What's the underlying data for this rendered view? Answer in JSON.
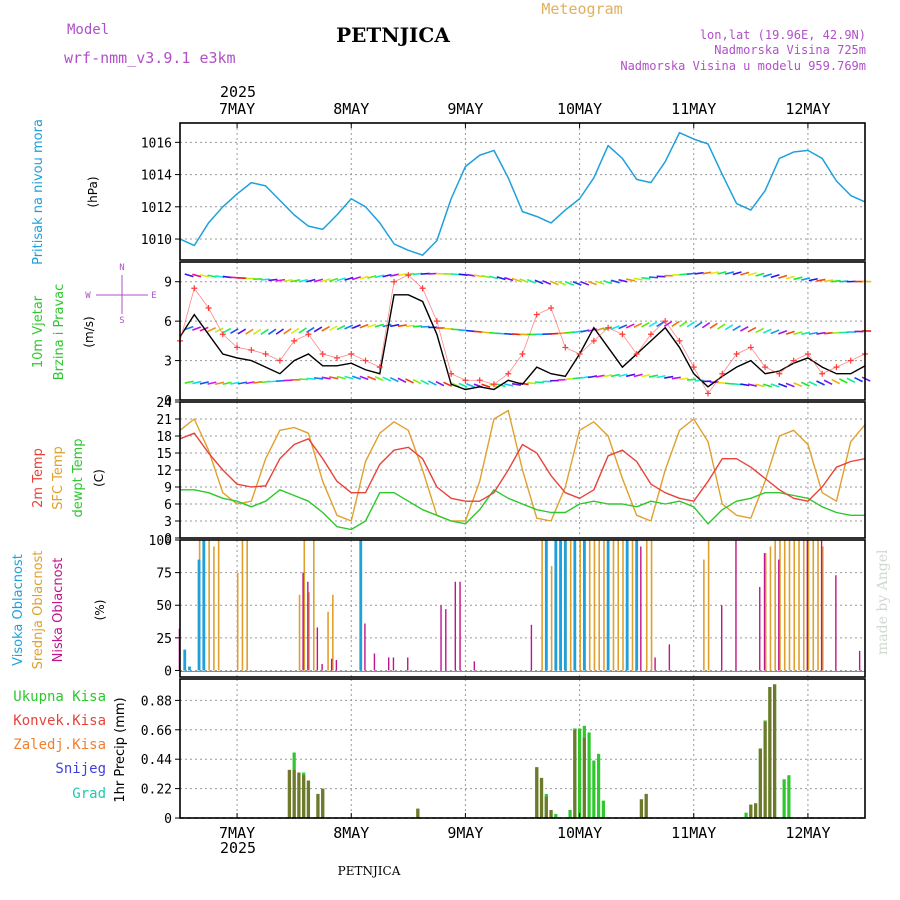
{
  "header": {
    "model_label": "Model",
    "model_name": "wrf-nmm_v3.9.1 e3km",
    "station": "PETNJICA",
    "chart_type": "Meteogram",
    "coords": "lon,lat (19.96E, 42.9N)",
    "elevation": "Nadmorska Visina 725m",
    "model_elevation": "Nadmorska Visina u modelu 959.769m",
    "watermark": "made by Angel",
    "footer_station": "PETNJICA"
  },
  "colors": {
    "pressure": "#1ea0dc",
    "wind_speed": "#000000",
    "gust": "#ff3b3b",
    "t2m": "#e8433b",
    "tsfc": "#e0a02e",
    "dewpt": "#2ec82e",
    "cloud_high": "#1ea0dc",
    "cloud_mid": "#e0a02e",
    "cloud_low": "#c0148c",
    "rain_total": "#2ec82e",
    "rain_conv": "#e8433b",
    "snow": "#4040e0",
    "grid": "#999999",
    "title": "#b050c8",
    "meteogram": "#e0b060"
  },
  "chart_data": {
    "type": "line",
    "years": {
      "top": "2025",
      "bottom": "2025"
    },
    "days": [
      "7MAY",
      "8MAY",
      "9MAY",
      "10MAY",
      "11MAY",
      "12MAY"
    ],
    "x_start_hour": -12,
    "x_end_hour": 132,
    "pressure": {
      "ylabel": "Pritisak na nivou mora",
      "unit": "(hPa)",
      "ylim": [
        1008.7,
        1017.2
      ],
      "ticks": [
        1010,
        1012,
        1014,
        1016
      ],
      "tick_labels": [
        "1010",
        "1012",
        "1014",
        "1016"
      ],
      "hours": [
        -12,
        -9,
        -6,
        -3,
        0,
        3,
        6,
        9,
        12,
        15,
        18,
        21,
        24,
        27,
        30,
        33,
        36,
        39,
        42,
        45,
        48,
        51,
        54,
        57,
        60,
        63,
        66,
        69,
        72,
        75,
        78,
        81,
        84,
        87,
        90,
        93,
        96,
        99,
        102,
        105,
        108,
        111,
        114,
        117,
        120,
        123,
        126,
        129,
        132
      ],
      "values": [
        1010.0,
        1009.6,
        1011.0,
        1012.0,
        1012.8,
        1013.5,
        1013.3,
        1012.4,
        1011.5,
        1010.8,
        1010.6,
        1011.5,
        1012.5,
        1012.0,
        1011.0,
        1009.7,
        1009.3,
        1009.0,
        1009.9,
        1012.5,
        1014.5,
        1015.2,
        1015.5,
        1013.8,
        1011.7,
        1011.4,
        1011.0,
        1011.8,
        1012.5,
        1013.8,
        1015.8,
        1015.0,
        1013.7,
        1013.5,
        1014.8,
        1016.6,
        1016.2,
        1015.9,
        1014.0,
        1012.2,
        1011.8,
        1013.0,
        1015.0,
        1015.4,
        1015.5,
        1015.0,
        1013.6,
        1012.7,
        1012.3
      ]
    },
    "wind": {
      "ylabel_1": "10m Vjetar",
      "ylabel_2": "Brzina i Pravac",
      "unit": "(m/s)",
      "compass_n": "N",
      "compass_s": "S",
      "compass_w": "W",
      "compass_e": "E",
      "ylim": [
        0,
        10.5
      ],
      "ticks": [
        0,
        3,
        6,
        9
      ],
      "tick_labels": [
        "0",
        "3",
        "6",
        "9"
      ],
      "hours": [
        -12,
        -9,
        -6,
        -3,
        0,
        3,
        6,
        9,
        12,
        15,
        18,
        21,
        24,
        27,
        30,
        33,
        36,
        39,
        42,
        45,
        48,
        51,
        54,
        57,
        60,
        63,
        66,
        69,
        72,
        75,
        78,
        81,
        84,
        87,
        90,
        93,
        96,
        99,
        102,
        105,
        108,
        111,
        114,
        117,
        120,
        123,
        126,
        129,
        132
      ],
      "speed": [
        4.8,
        6.5,
        5.0,
        3.5,
        3.2,
        3.0,
        2.5,
        2.0,
        3.0,
        3.5,
        2.6,
        2.6,
        2.8,
        2.3,
        2.0,
        8.0,
        8.0,
        7.5,
        5.0,
        1.2,
        0.8,
        1.0,
        0.8,
        1.5,
        1.2,
        2.5,
        2.0,
        1.8,
        3.5,
        5.5,
        4.0,
        2.5,
        3.5,
        4.5,
        5.5,
        4.0,
        2.0,
        1.0,
        1.8,
        2.5,
        3.0,
        2.0,
        2.2,
        2.8,
        3.2,
        2.5,
        2.0,
        2.0,
        2.6
      ],
      "gust": [
        4.5,
        8.5,
        7.0,
        5.0,
        4.0,
        3.8,
        3.5,
        3.0,
        4.5,
        5.0,
        3.5,
        3.2,
        3.5,
        3.0,
        2.5,
        9.0,
        9.5,
        8.5,
        6.0,
        2.0,
        1.5,
        1.5,
        1.2,
        2.0,
        3.5,
        6.5,
        7.0,
        4.0,
        3.5,
        4.5,
        5.5,
        5.0,
        3.5,
        5.0,
        6.0,
        4.5,
        2.5,
        0.5,
        2.0,
        3.5,
        4.0,
        2.5,
        2.0,
        3.0,
        3.5,
        2.0,
        2.5,
        3.0,
        3.5
      ]
    },
    "temperature": {
      "ylabel_1": "2m Temp",
      "ylabel_2": "SFC Temp",
      "ylabel_3": "dewpt Temp",
      "unit": "(C)",
      "ylim": [
        0,
        24
      ],
      "ticks": [
        0,
        3,
        6,
        9,
        12,
        15,
        18,
        21,
        24
      ],
      "tick_labels": [
        "0",
        "3",
        "6",
        "9",
        "12",
        "15",
        "18",
        "21",
        "24"
      ],
      "hours": [
        -12,
        -9,
        -6,
        -3,
        0,
        3,
        6,
        9,
        12,
        15,
        18,
        21,
        24,
        27,
        30,
        33,
        36,
        39,
        42,
        45,
        48,
        51,
        54,
        57,
        60,
        63,
        66,
        69,
        72,
        75,
        78,
        81,
        84,
        87,
        90,
        93,
        96,
        99,
        102,
        105,
        108,
        111,
        114,
        117,
        120,
        123,
        126,
        129,
        132
      ],
      "t2m": [
        17.5,
        18.5,
        15.0,
        12.0,
        9.5,
        9.0,
        9.2,
        14.0,
        16.5,
        17.5,
        14.0,
        10.0,
        8.0,
        8.0,
        13.0,
        15.5,
        16.0,
        14.0,
        9.0,
        7.0,
        6.5,
        6.5,
        8.0,
        12.0,
        16.5,
        15.0,
        11.0,
        8.0,
        7.0,
        8.5,
        14.5,
        15.5,
        13.5,
        9.5,
        8.0,
        7.0,
        6.5,
        10.0,
        14.0,
        14.0,
        12.5,
        10.5,
        8.5,
        7.0,
        6.5,
        9.0,
        12.5,
        13.5,
        14.0
      ],
      "tsfc": [
        19.0,
        21.0,
        15.5,
        8.0,
        6.0,
        6.5,
        14.0,
        19.0,
        19.5,
        18.5,
        10.0,
        4.0,
        3.0,
        13.5,
        18.5,
        20.5,
        19.0,
        12.0,
        4.0,
        3.0,
        3.0,
        10.0,
        21.0,
        22.5,
        12.0,
        3.5,
        3.0,
        9.0,
        19.0,
        20.5,
        18.0,
        10.5,
        4.0,
        3.0,
        12.0,
        19.0,
        21.0,
        17.0,
        6.0,
        4.0,
        3.5,
        10.0,
        18.0,
        19.0,
        16.5,
        8.0,
        6.5,
        17.0,
        20.0
      ],
      "dewpt": [
        8.5,
        8.5,
        8.0,
        7.0,
        6.5,
        5.5,
        6.5,
        8.5,
        7.5,
        6.5,
        4.5,
        2.0,
        1.5,
        3.0,
        8.0,
        8.0,
        6.5,
        5.0,
        4.0,
        3.0,
        2.5,
        5.0,
        8.5,
        7.0,
        6.0,
        5.0,
        4.5,
        4.5,
        6.0,
        6.5,
        6.0,
        6.0,
        5.5,
        6.5,
        6.0,
        6.5,
        5.5,
        2.5,
        5.0,
        6.5,
        7.0,
        8.0,
        8.0,
        7.5,
        7.0,
        5.5,
        4.5,
        4.0,
        4.0
      ]
    },
    "clouds": {
      "ylabel_1": "Visoka Oblacnost",
      "ylabel_2": "Srednja Oblacnost",
      "ylabel_3": "Niska Oblacnost",
      "unit": "(%)",
      "ylim": [
        0,
        100
      ],
      "ticks": [
        0,
        25,
        50,
        75,
        100
      ],
      "tick_labels": [
        "0",
        "25",
        "50",
        "75",
        "100"
      ],
      "high": [
        [
          -11,
          16
        ],
        [
          -10,
          3
        ],
        [
          -8,
          85
        ],
        [
          -7,
          100
        ],
        [
          26,
          100
        ],
        [
          65,
          100
        ],
        [
          67,
          100
        ],
        [
          68,
          100
        ],
        [
          69,
          100
        ],
        [
          71,
          100
        ],
        [
          73,
          100
        ],
        [
          78,
          100
        ],
        [
          82,
          100
        ],
        [
          84,
          100
        ]
      ],
      "mid": [
        [
          -8,
          100
        ],
        [
          -7,
          100
        ],
        [
          -6,
          100
        ],
        [
          -5,
          95
        ],
        [
          -4,
          100
        ],
        [
          0,
          75
        ],
        [
          1,
          100
        ],
        [
          2,
          100
        ],
        [
          13,
          58
        ],
        [
          14,
          100
        ],
        [
          15,
          60
        ],
        [
          16,
          100
        ],
        [
          19,
          45
        ],
        [
          20,
          58
        ],
        [
          64,
          100
        ],
        [
          65,
          100
        ],
        [
          66,
          80
        ],
        [
          67,
          100
        ],
        [
          68,
          100
        ],
        [
          69,
          100
        ],
        [
          70,
          100
        ],
        [
          72,
          100
        ],
        [
          73,
          100
        ],
        [
          74,
          100
        ],
        [
          75,
          100
        ],
        [
          76,
          100
        ],
        [
          77,
          100
        ],
        [
          78,
          100
        ],
        [
          79,
          100
        ],
        [
          80,
          100
        ],
        [
          81,
          100
        ],
        [
          82,
          100
        ],
        [
          83,
          100
        ],
        [
          84,
          100
        ],
        [
          86,
          100
        ],
        [
          87,
          100
        ],
        [
          98,
          85
        ],
        [
          99,
          100
        ],
        [
          111,
          90
        ],
        [
          112,
          95
        ],
        [
          113,
          100
        ],
        [
          114,
          100
        ],
        [
          115,
          100
        ],
        [
          116,
          100
        ],
        [
          117,
          100
        ],
        [
          118,
          100
        ],
        [
          119,
          100
        ],
        [
          120,
          100
        ],
        [
          121,
          100
        ],
        [
          122,
          100
        ],
        [
          123,
          95
        ]
      ],
      "low": [
        [
          -12,
          32
        ],
        [
          14,
          75
        ],
        [
          15,
          68
        ],
        [
          17,
          33
        ],
        [
          18,
          5
        ],
        [
          20,
          9
        ],
        [
          21,
          8
        ],
        [
          27,
          36
        ],
        [
          29,
          13
        ],
        [
          32,
          10
        ],
        [
          33,
          10
        ],
        [
          36,
          10
        ],
        [
          43,
          50
        ],
        [
          44,
          47
        ],
        [
          46,
          68
        ],
        [
          47,
          68
        ],
        [
          50,
          7
        ],
        [
          62,
          35
        ],
        [
          85,
          95
        ],
        [
          88,
          10
        ],
        [
          91,
          20
        ],
        [
          102,
          50
        ],
        [
          105,
          100
        ],
        [
          110,
          64
        ],
        [
          111,
          90
        ],
        [
          114,
          85
        ],
        [
          120,
          100
        ],
        [
          123,
          100
        ],
        [
          126,
          73
        ],
        [
          131,
          15
        ]
      ]
    },
    "precip": {
      "ylabel": "1hr Precip (mm)",
      "legend_total": "Ukupna Kisa",
      "legend_conv": "Konvek.Kisa",
      "legend_freeze": "Zaledj.Kisa",
      "legend_snow": "Snijeg",
      "legend_hail": "Grad",
      "ylim": [
        0,
        1.04
      ],
      "ticks": [
        0,
        0.22,
        0.44,
        0.66,
        0.88
      ],
      "tick_labels": [
        "0",
        "0.22",
        "0.44",
        "0.66",
        "0.88"
      ],
      "total": [
        [
          11,
          0.36
        ],
        [
          12,
          0.49
        ],
        [
          13,
          0.34
        ],
        [
          14,
          0.34
        ],
        [
          15,
          0.28
        ],
        [
          17,
          0.18
        ],
        [
          18,
          0.22
        ],
        [
          38,
          0.07
        ],
        [
          63,
          0.38
        ],
        [
          64,
          0.3
        ],
        [
          65,
          0.18
        ],
        [
          66,
          0.06
        ],
        [
          67,
          0.03
        ],
        [
          70,
          0.06
        ],
        [
          71,
          0.67
        ],
        [
          72,
          0.67
        ],
        [
          73,
          0.69
        ],
        [
          74,
          0.64
        ],
        [
          75,
          0.43
        ],
        [
          76,
          0.48
        ],
        [
          77,
          0.13
        ],
        [
          85,
          0.14
        ],
        [
          86,
          0.18
        ],
        [
          107,
          0.04
        ],
        [
          108,
          0.1
        ],
        [
          109,
          0.11
        ],
        [
          110,
          0.52
        ],
        [
          111,
          0.73
        ],
        [
          112,
          0.98
        ],
        [
          113,
          1.0
        ],
        [
          115,
          0.29
        ],
        [
          116,
          0.32
        ]
      ],
      "conv": [
        [
          11,
          0.36
        ],
        [
          12,
          0.36
        ],
        [
          13,
          0.34
        ],
        [
          14,
          0.32
        ],
        [
          15,
          0.28
        ],
        [
          17,
          0.18
        ],
        [
          18,
          0.22
        ],
        [
          38,
          0.07
        ],
        [
          63,
          0.38
        ],
        [
          64,
          0.3
        ],
        [
          65,
          0.16
        ],
        [
          66,
          0.06
        ],
        [
          71,
          0.66
        ],
        [
          73,
          0.6
        ],
        [
          85,
          0.14
        ],
        [
          86,
          0.18
        ],
        [
          108,
          0.1
        ],
        [
          109,
          0.11
        ],
        [
          110,
          0.52
        ],
        [
          111,
          0.72
        ],
        [
          112,
          0.98
        ],
        [
          113,
          1.0
        ]
      ]
    }
  }
}
